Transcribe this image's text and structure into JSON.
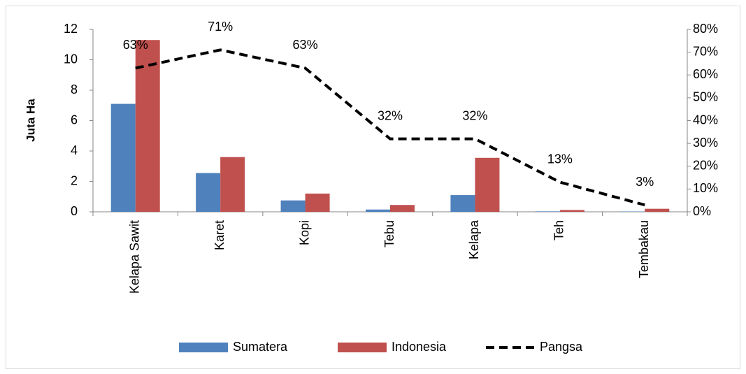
{
  "chart_data": {
    "type": "bar",
    "y_label": "Juta Ha",
    "categories": [
      "Kelapa Sawit",
      "Karet",
      "Kopi",
      "Tebu",
      "Kelapa",
      "Teh",
      "Tembakau"
    ],
    "ylim": [
      0,
      12
    ],
    "yticks": [
      0,
      2,
      4,
      6,
      8,
      10,
      12
    ],
    "y2lim": [
      0,
      80
    ],
    "y2ticks": [
      {
        "value": 0,
        "label": "0%"
      },
      {
        "value": 10,
        "label": "10%"
      },
      {
        "value": 20,
        "label": "20%"
      },
      {
        "value": 30,
        "label": "30%"
      },
      {
        "value": 40,
        "label": "40%"
      },
      {
        "value": 50,
        "label": "50%"
      },
      {
        "value": 60,
        "label": "60%"
      },
      {
        "value": 70,
        "label": "70%"
      },
      {
        "value": 80,
        "label": "80%"
      }
    ],
    "series": [
      {
        "name": "Sumatera",
        "type": "bar",
        "color": "#4f81bd",
        "values": [
          7.1,
          2.55,
          0.75,
          0.15,
          1.1,
          0.03,
          0.02
        ]
      },
      {
        "name": "Indonesia",
        "type": "bar",
        "color": "#c0504d",
        "values": [
          11.3,
          3.6,
          1.2,
          0.45,
          3.55,
          0.12,
          0.2
        ]
      },
      {
        "name": "Pangsa",
        "type": "line",
        "axis": "y2",
        "color": "#000000",
        "dashed": true,
        "values": [
          63,
          71,
          63,
          32,
          32,
          13,
          3
        ],
        "value_labels": [
          "63%",
          "71%",
          "63%",
          "32%",
          "32%",
          "13%",
          "3%"
        ]
      }
    ],
    "legend": "bottom"
  }
}
